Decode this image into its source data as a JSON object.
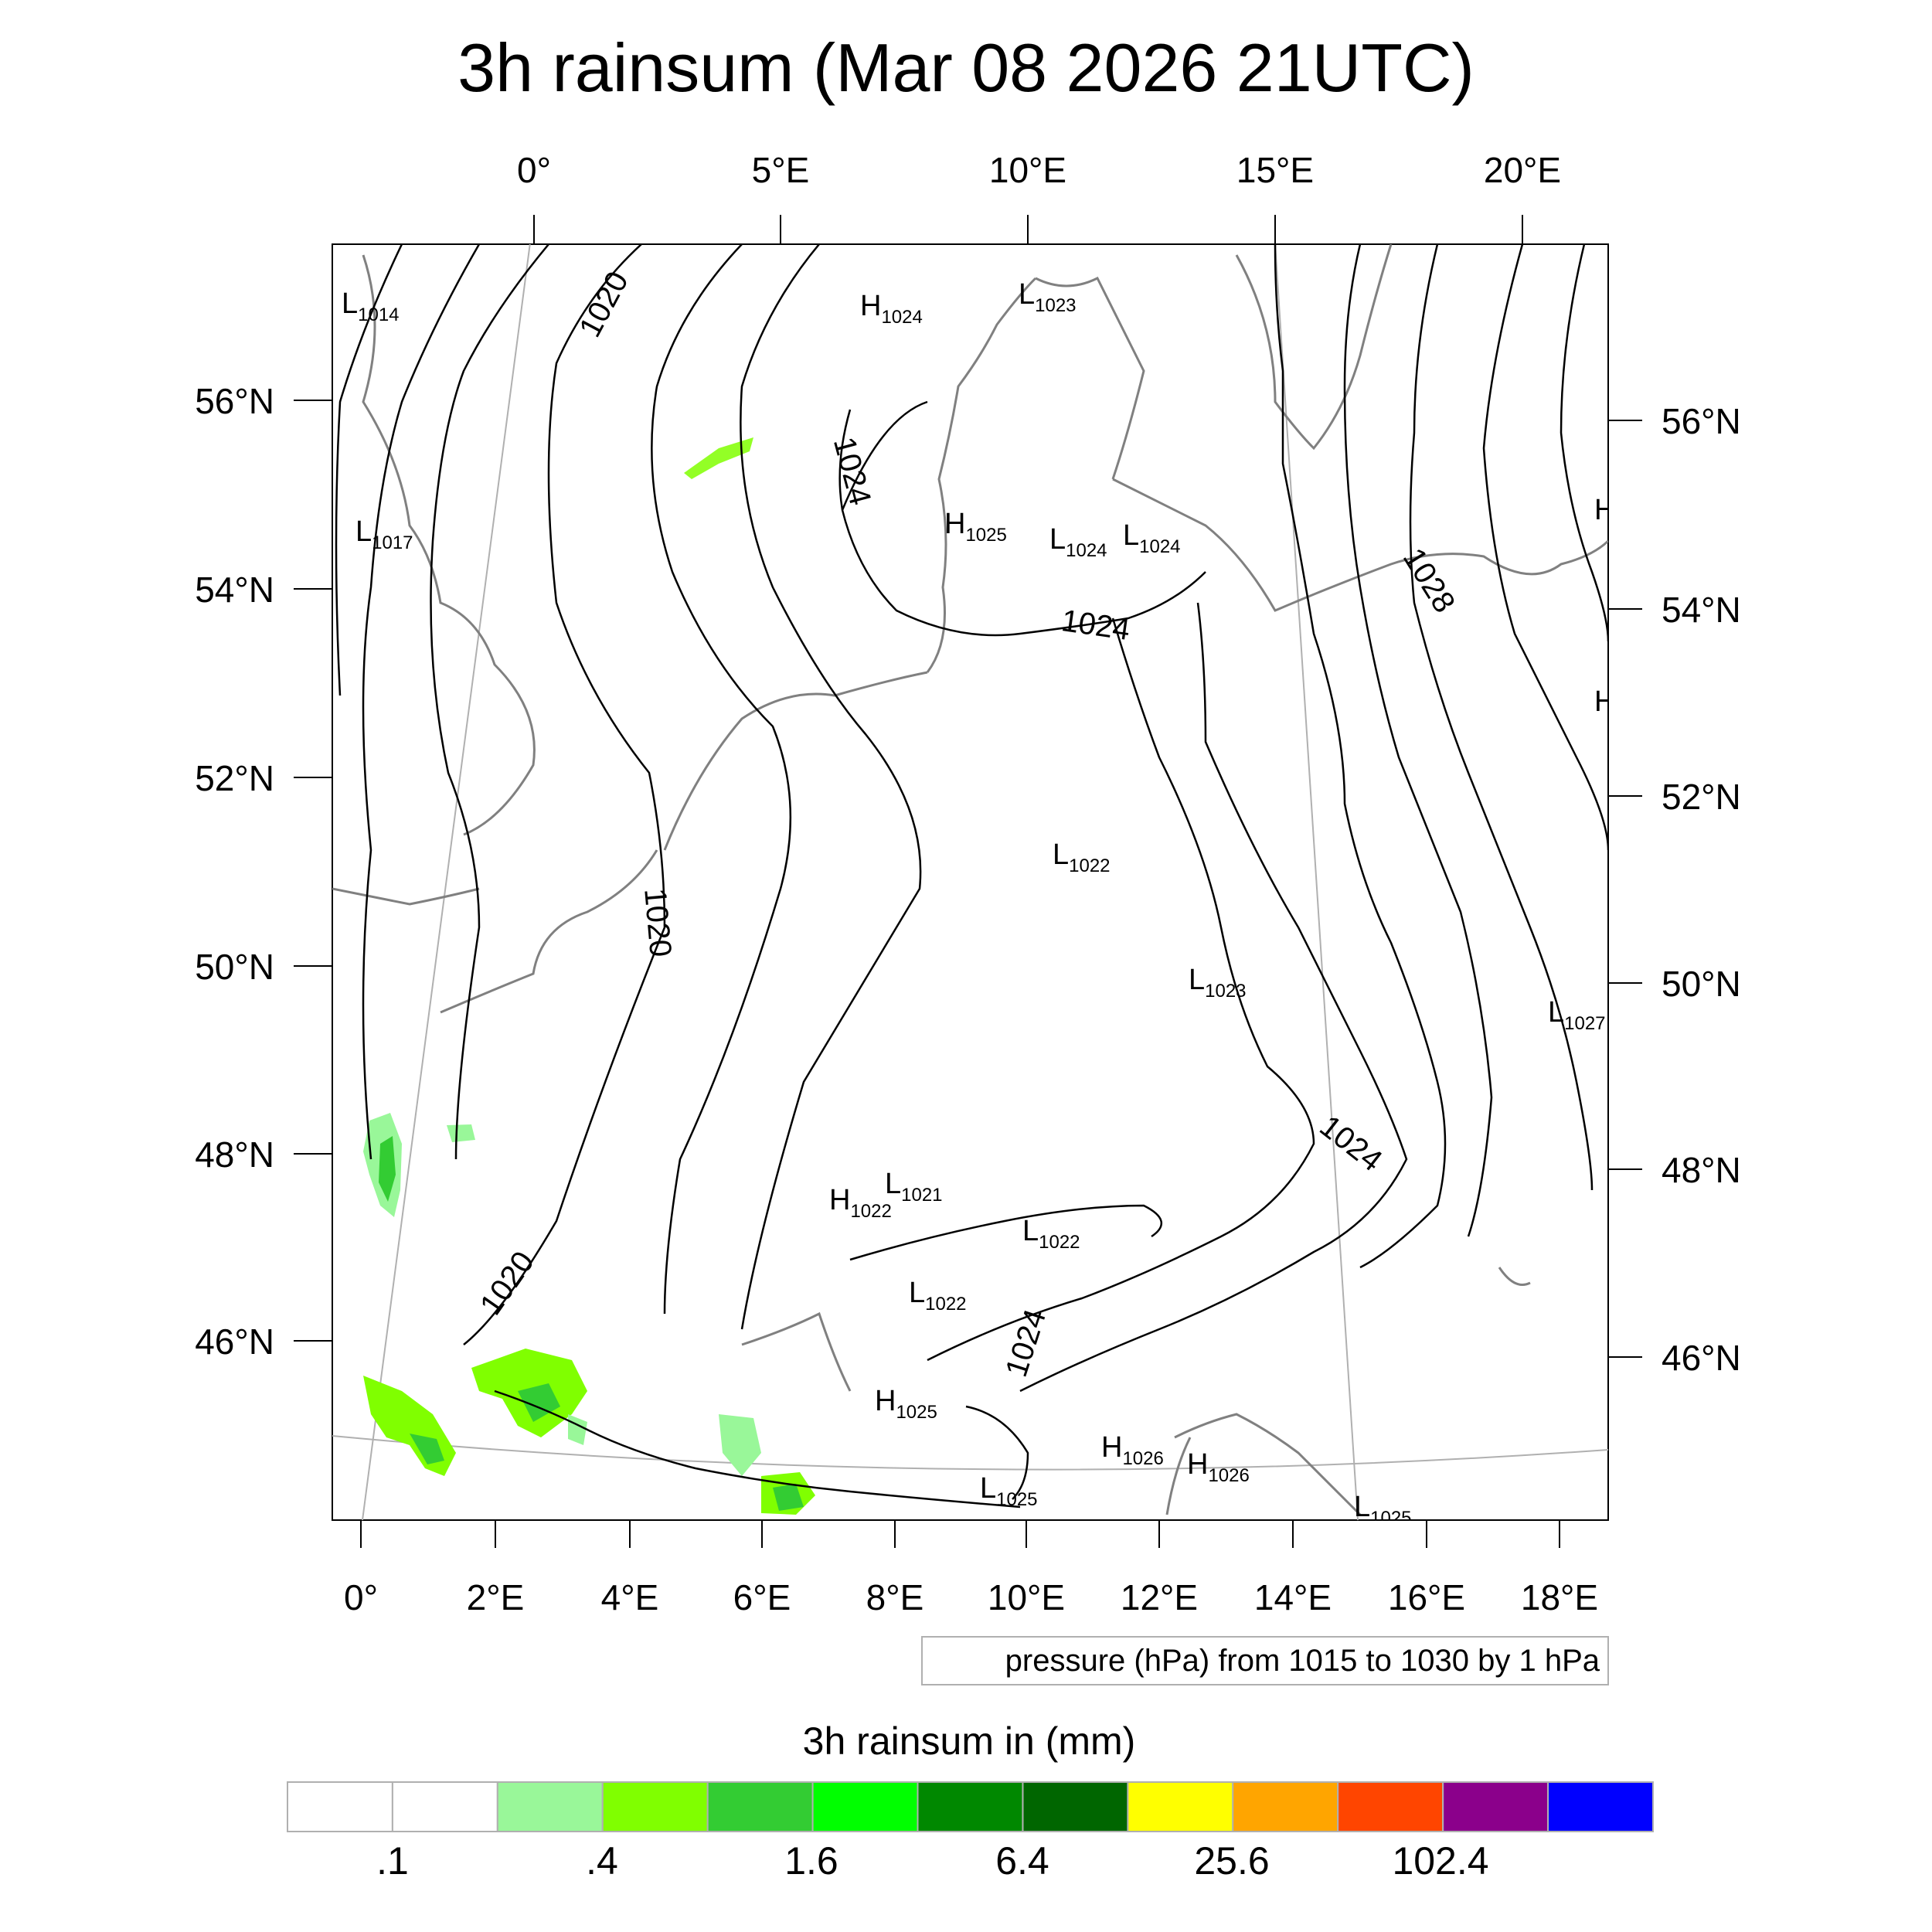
{
  "title": "3h rainsum (Mar 08 2026 21UTC)",
  "top_lon_labels": [
    "0°",
    "5°E",
    "10°E",
    "15°E",
    "20°E"
  ],
  "bottom_lon_labels": [
    "0°",
    "2°E",
    "4°E",
    "6°E",
    "8°E",
    "10°E",
    "12°E",
    "14°E",
    "16°E",
    "18°E"
  ],
  "left_lat_labels": [
    "56°N",
    "54°N",
    "52°N",
    "50°N",
    "48°N",
    "46°N"
  ],
  "right_lat_labels": [
    "56°N",
    "54°N",
    "52°N",
    "50°N",
    "48°N",
    "46°N"
  ],
  "pressure_centers": [
    {
      "letter": "L",
      "value": "1014"
    },
    {
      "letter": "L",
      "value": "1017"
    },
    {
      "letter": "H",
      "value": "1024"
    },
    {
      "letter": "L",
      "value": "1023"
    },
    {
      "letter": "H",
      "value": "1025"
    },
    {
      "letter": "L",
      "value": "1024"
    },
    {
      "letter": "L",
      "value": "1024"
    },
    {
      "letter": "L",
      "value": "1022"
    },
    {
      "letter": "L",
      "value": "1023"
    },
    {
      "letter": "L",
      "value": "1021"
    },
    {
      "letter": "H",
      "value": "1022"
    },
    {
      "letter": "L",
      "value": "1022"
    },
    {
      "letter": "L",
      "value": "1022"
    },
    {
      "letter": "H",
      "value": "1025"
    },
    {
      "letter": "H",
      "value": "1026"
    },
    {
      "letter": "H",
      "value": "1026"
    },
    {
      "letter": "L",
      "value": "1025"
    },
    {
      "letter": "L",
      "value": "1025"
    },
    {
      "letter": "L",
      "value": "1027"
    },
    {
      "letter": "H",
      "value": ""
    },
    {
      "letter": "H",
      "value": ""
    }
  ],
  "contour_labels": [
    "1020",
    "1020",
    "1020",
    "1024",
    "1024",
    "1024",
    "1024",
    "1028"
  ],
  "pressure_note": "pressure (hPa) from 1015 to 1030 by 1 hPa",
  "colorbar": {
    "title": "3h rainsum in (mm)",
    "colors": [
      "#ffffff",
      "#ffffff",
      "#99f799",
      "#80ff00",
      "#33cc33",
      "#00ff00",
      "#008800",
      "#006600",
      "#ffff00",
      "#ffa500",
      "#ff4500",
      "#8b008b",
      "#0000ff"
    ],
    "labels": [
      ".1",
      ".4",
      "1.6",
      "6.4",
      "25.6",
      "102.4"
    ]
  },
  "precip_color_light": "#99f799",
  "precip_color_mid": "#80ff00",
  "precip_color_dark": "#33cc33"
}
